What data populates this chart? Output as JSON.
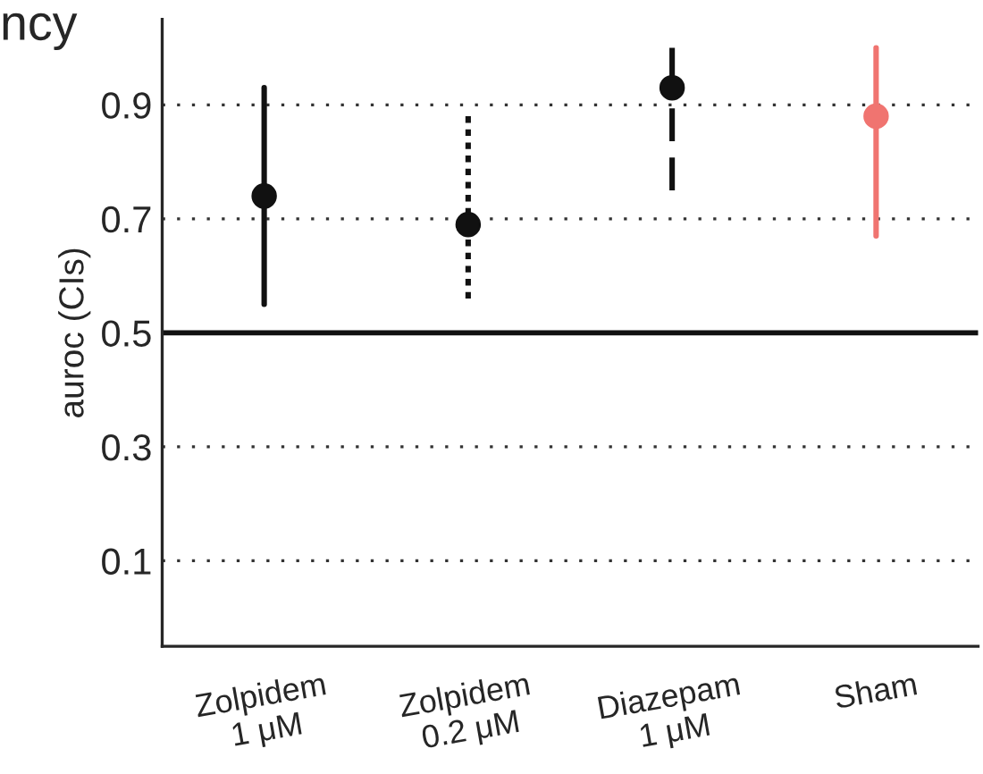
{
  "chart_data": {
    "type": "scatter",
    "title": "ncy",
    "ylabel": "auroc (CIs)",
    "categories": [
      "Zolpidem\n1 μM",
      "Zolpidem\n0.2 μM",
      "Diazepam\n1 μM",
      "Sham"
    ],
    "series": [
      {
        "color": "#111111",
        "line_style": "solid",
        "values": [
          0.74,
          null,
          null,
          null
        ],
        "errors": [
          [
            0.55,
            0.93
          ],
          null,
          null,
          null
        ]
      },
      {
        "color": "#111111",
        "line_style": "dotted",
        "values": [
          null,
          0.69,
          null,
          null
        ],
        "errors": [
          null,
          [
            0.56,
            0.88
          ],
          null,
          null
        ]
      },
      {
        "color": "#111111",
        "line_style": "dashed",
        "values": [
          null,
          null,
          0.93,
          null
        ],
        "errors": [
          null,
          null,
          [
            0.75,
            1.0
          ],
          null
        ]
      },
      {
        "color": "#f07470",
        "line_style": "solid",
        "values": [
          null,
          null,
          null,
          0.88
        ],
        "errors": [
          null,
          null,
          null,
          [
            0.67,
            1.0
          ]
        ]
      }
    ],
    "ylim": [
      -0.05,
      1.05
    ],
    "yticks": [
      0.1,
      0.3,
      0.5,
      0.7,
      0.9
    ],
    "ref_lines": [
      {
        "axis": "y",
        "value": 0.5,
        "color": "#111111",
        "line_style": "solid"
      }
    ],
    "grid": "y",
    "marker": "circle"
  }
}
